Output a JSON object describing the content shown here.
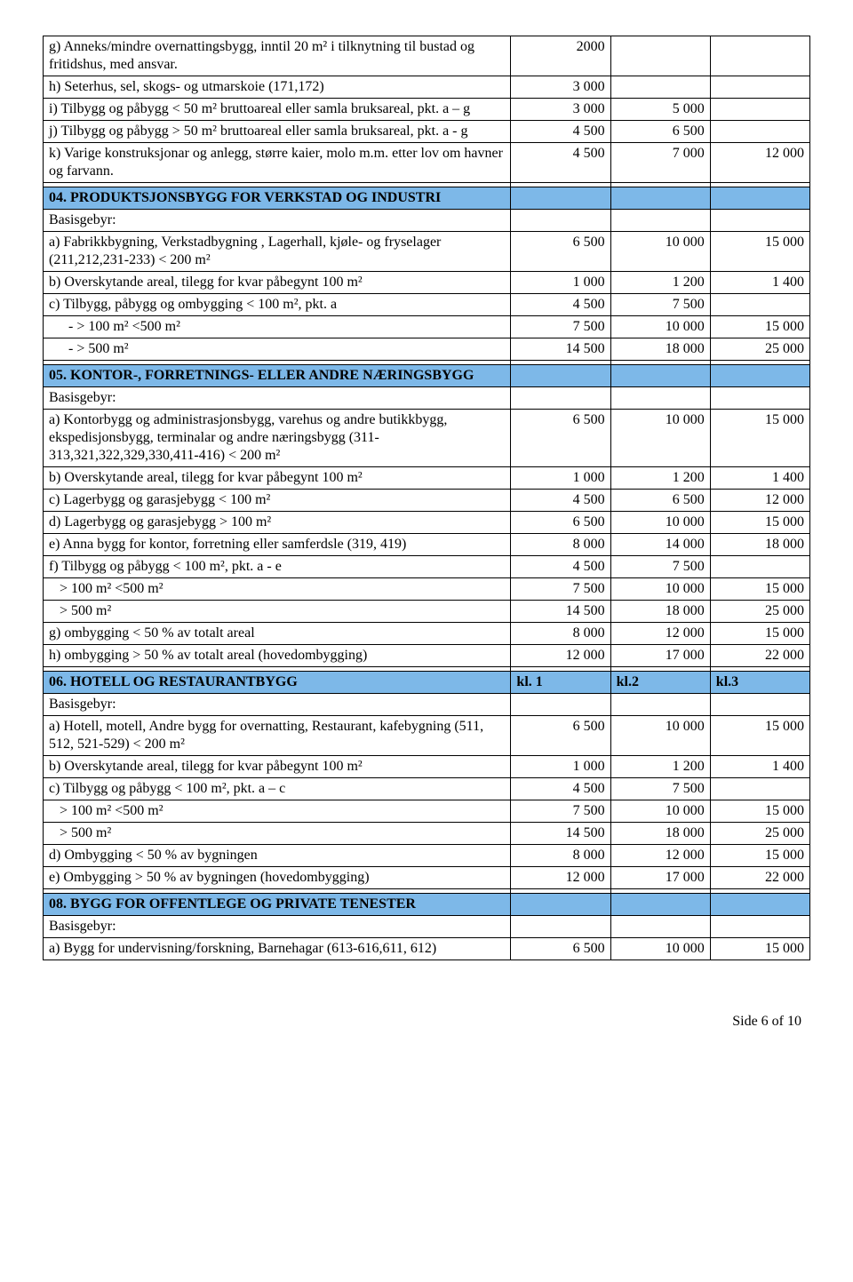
{
  "footer": "Side 6 of 10",
  "intro_rows": [
    {
      "label": "g) Anneks/mindre overnattingsbygg, inntil 20 m² i tilknytning til bustad og fritidshus, med ansvar.",
      "c1": "2000",
      "c2": "",
      "c3": ""
    },
    {
      "label": "h) Seterhus, sel, skogs- og utmarskoie (171,172)",
      "c1": "3 000",
      "c2": "",
      "c3": ""
    },
    {
      "label": "i) Tilbygg og påbygg < 50 m² bruttoareal eller samla bruksareal, pkt. a – g",
      "c1": "3 000",
      "c2": "5 000",
      "c3": ""
    },
    {
      "label": "j) Tilbygg og påbygg > 50 m² bruttoareal eller samla bruksareal, pkt. a - g",
      "c1": "4 500",
      "c2": "6 500",
      "c3": ""
    },
    {
      "label": "k) Varige konstruksjonar og anlegg, større kaier, molo m.m. etter lov om havner og farvann.",
      "c1": "4 500",
      "c2": "7 000",
      "c3": "12 000"
    }
  ],
  "sec04": {
    "title": "04. PRODUKTSJONSBYGG FOR VERKSTAD OG INDUSTRI",
    "basis": "Basisgebyr:",
    "rows": [
      {
        "label": "a) Fabrikkbygning, Verkstadbygning , Lagerhall, kjøle- og fryselager (211,212,231-233) < 200 m²",
        "c1": "6 500",
        "c2": "10 000",
        "c3": "15 000"
      },
      {
        "label": "b) Overskytande areal, tilegg for kvar påbegynt 100 m²",
        "c1": "1 000",
        "c2": "1 200",
        "c3": "1 400"
      },
      {
        "label": "c) Tilbygg, påbygg og ombygging < 100 m², pkt. a",
        "c1": "4 500",
        "c2": "7 500",
        "c3": ""
      },
      {
        "label": "-   > 100 m² <500 m²",
        "c1": "7 500",
        "c2": "10 000",
        "c3": "15 000",
        "indent": true
      },
      {
        "label": "-   > 500 m²",
        "c1": "14 500",
        "c2": "18 000",
        "c3": "25 000",
        "indent": true
      }
    ]
  },
  "sec05": {
    "title": "05. KONTOR-, FORRETNINGS- ELLER ANDRE NÆRINGSBYGG",
    "basis": "Basisgebyr:",
    "rows": [
      {
        "label": "a) Kontorbygg og administrasjonsbygg, varehus og andre butikkbygg, ekspedisjonsbygg, terminalar og andre næringsbygg (311-313,321,322,329,330,411-416) < 200 m²",
        "c1": "6 500",
        "c2": "10 000",
        "c3": "15 000"
      },
      {
        "label": "b) Overskytande areal, tilegg for kvar påbegynt 100 m²",
        "c1": "1 000",
        "c2": "1 200",
        "c3": "1 400"
      },
      {
        "label": "c) Lagerbygg og garasjebygg < 100 m²",
        "c1": "4 500",
        "c2": "6 500",
        "c3": "12 000"
      },
      {
        "label": "d) Lagerbygg og garasjebygg > 100 m²",
        "c1": "6 500",
        "c2": "10 000",
        "c3": "15 000"
      },
      {
        "label": "e) Anna bygg for kontor, forretning eller samferdsle (319, 419)",
        "c1": "8 000",
        "c2": "14 000",
        "c3": "18 000"
      },
      {
        "label": "f) Tilbygg og påbygg < 100 m², pkt. a - e",
        "c1": "4 500",
        "c2": "7 500",
        "c3": ""
      },
      {
        "label": "> 100 m² <500 m²",
        "c1": "7 500",
        "c2": "10 000",
        "c3": "15 000",
        "indent2": true
      },
      {
        "label": "> 500 m²",
        "c1": "14 500",
        "c2": "18 000",
        "c3": "25 000",
        "indent2": true
      },
      {
        "label": "g) ombygging < 50 % av totalt areal",
        "c1": "8 000",
        "c2": "12 000",
        "c3": "15 000"
      },
      {
        "label": "h) ombygging > 50 % av totalt areal (hovedombygging)",
        "c1": "12 000",
        "c2": "17 000",
        "c3": "22 000"
      }
    ]
  },
  "sec06": {
    "title": "06. HOTELL OG RESTAURANTBYGG",
    "h2": "kl. 1",
    "h3": "kl.2",
    "h4": "kl.3",
    "basis": "Basisgebyr:",
    "rows": [
      {
        "label": "a) Hotell, motell, Andre bygg for overnatting, Restaurant, kafebygning (511, 512, 521-529) < 200 m²",
        "c1": "6 500",
        "c2": "10 000",
        "c3": "15 000"
      },
      {
        "label": "b) Overskytande areal, tilegg for kvar påbegynt 100 m²",
        "c1": "1 000",
        "c2": "1 200",
        "c3": "1 400"
      },
      {
        "label": "c) Tilbygg og påbygg < 100 m², pkt. a – c",
        "c1": "4 500",
        "c2": "7 500",
        "c3": ""
      },
      {
        "label": "> 100 m² <500 m²",
        "c1": "7 500",
        "c2": "10 000",
        "c3": "15 000",
        "indent2": true
      },
      {
        "label": "> 500 m²",
        "c1": "14 500",
        "c2": "18 000",
        "c3": "25 000",
        "indent2": true
      },
      {
        "label": "d) Ombygging < 50 % av bygningen",
        "c1": "8 000",
        "c2": "12 000",
        "c3": "15 000"
      },
      {
        "label": "e) Ombygging > 50 % av bygningen (hovedombygging)",
        "c1": "12 000",
        "c2": "17 000",
        "c3": "22 000"
      }
    ]
  },
  "sec08": {
    "title": "08. BYGG FOR OFFENTLEGE OG PRIVATE TENESTER",
    "basis": "Basisgebyr:",
    "rows": [
      {
        "label": "a) Bygg for undervisning/forskning, Barnehagar (613-616,611, 612)",
        "c1": "6 500",
        "c2": "10 000",
        "c3": "15 000"
      }
    ]
  }
}
